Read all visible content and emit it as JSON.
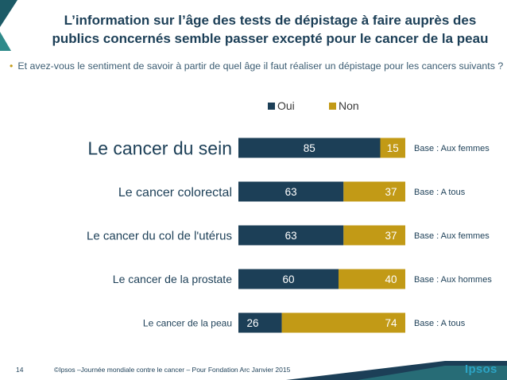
{
  "header": {
    "title_line1": "L’information sur l’âge des tests de dépistage à faire auprès des",
    "title_line2": "publics concernés semble passer excepté pour le cancer de la peau"
  },
  "question": {
    "bullet": "•",
    "text": "Et avez-vous le sentiment de savoir à partir de quel âge il faut réaliser un dépistage pour les cancers suivants ?"
  },
  "footer": {
    "page_number": "14",
    "copyright": "©Ipsos –Journée mondiale contre le cancer – Pour Fondation Arc  Janvier 2015",
    "logo": "Ipsos"
  },
  "colors": {
    "oui": "#1c3f57",
    "non": "#c29a16",
    "accent_teal": "#2f8a8a",
    "logo": "#2ca3c4"
  },
  "chart_data": {
    "type": "bar",
    "orientation": "horizontal",
    "stacked": true,
    "categories": [
      "Le cancer du sein",
      "Le cancer colorectal",
      "Le cancer du col de l'utérus",
      "Le cancer de la prostate",
      "Le cancer de la peau"
    ],
    "series": [
      {
        "name": "Oui",
        "values": [
          85,
          63,
          63,
          60,
          26
        ]
      },
      {
        "name": "Non",
        "values": [
          15,
          37,
          37,
          40,
          74
        ]
      }
    ],
    "bases": [
      "Base : Aux femmes",
      "Base : A tous",
      "Base : Aux femmes",
      "Base : Aux hommes",
      "Base : A tous"
    ],
    "xlim": [
      0,
      100
    ],
    "legend_position": "top",
    "grid": false
  }
}
